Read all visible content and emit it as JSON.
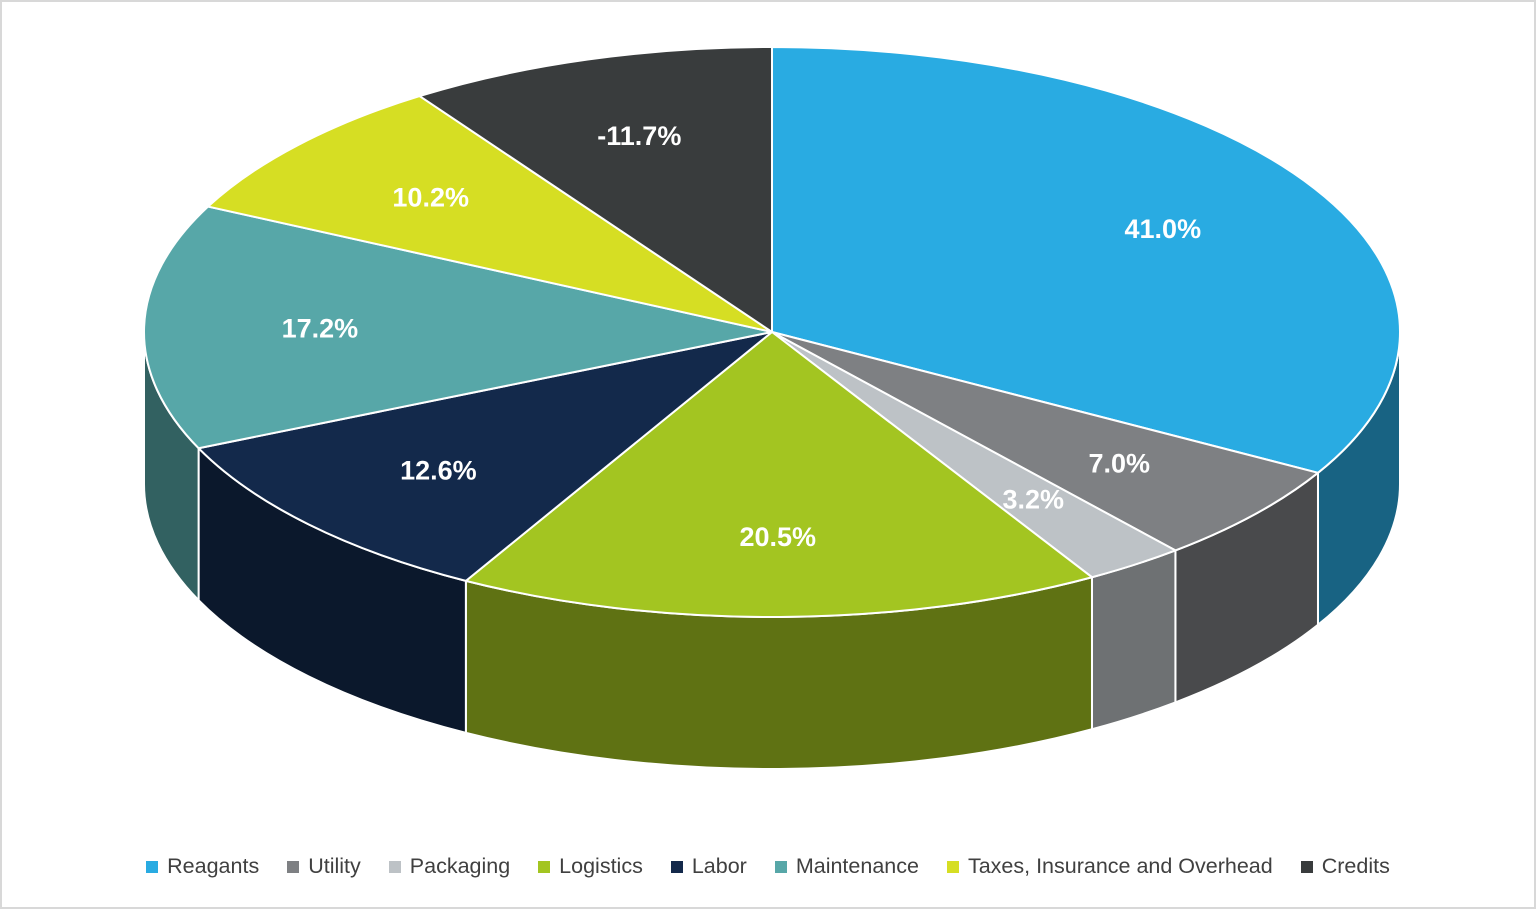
{
  "chart_data": {
    "type": "pie",
    "title": "",
    "effect": "3d",
    "start_angle_deg": -90,
    "direction": "clockwise",
    "legend_position": "bottom",
    "grid": false,
    "categories": [
      "Reagants",
      "Utility",
      "Packaging",
      "Logistics",
      "Labor",
      "Maintenance",
      "Taxes, Insurance and Overhead",
      "Credits"
    ],
    "values": [
      41.0,
      7.0,
      3.2,
      20.5,
      12.6,
      17.2,
      10.2,
      -11.7
    ],
    "data_labels": [
      "41.0%",
      "7.0%",
      "3.2%",
      "20.5%",
      "12.6%",
      "17.2%",
      "10.2%",
      "-11.7%"
    ],
    "colors": [
      "#29ABE2",
      "#7E8083",
      "#BDC2C6",
      "#A3C521",
      "#13294B",
      "#57A7A8",
      "#D6DE23",
      "#393C3D"
    ],
    "label_color": "#FFFFFF",
    "background": "#FFFFFF",
    "border_color": "#D8D8D8",
    "legend_text_color": "#404040"
  }
}
